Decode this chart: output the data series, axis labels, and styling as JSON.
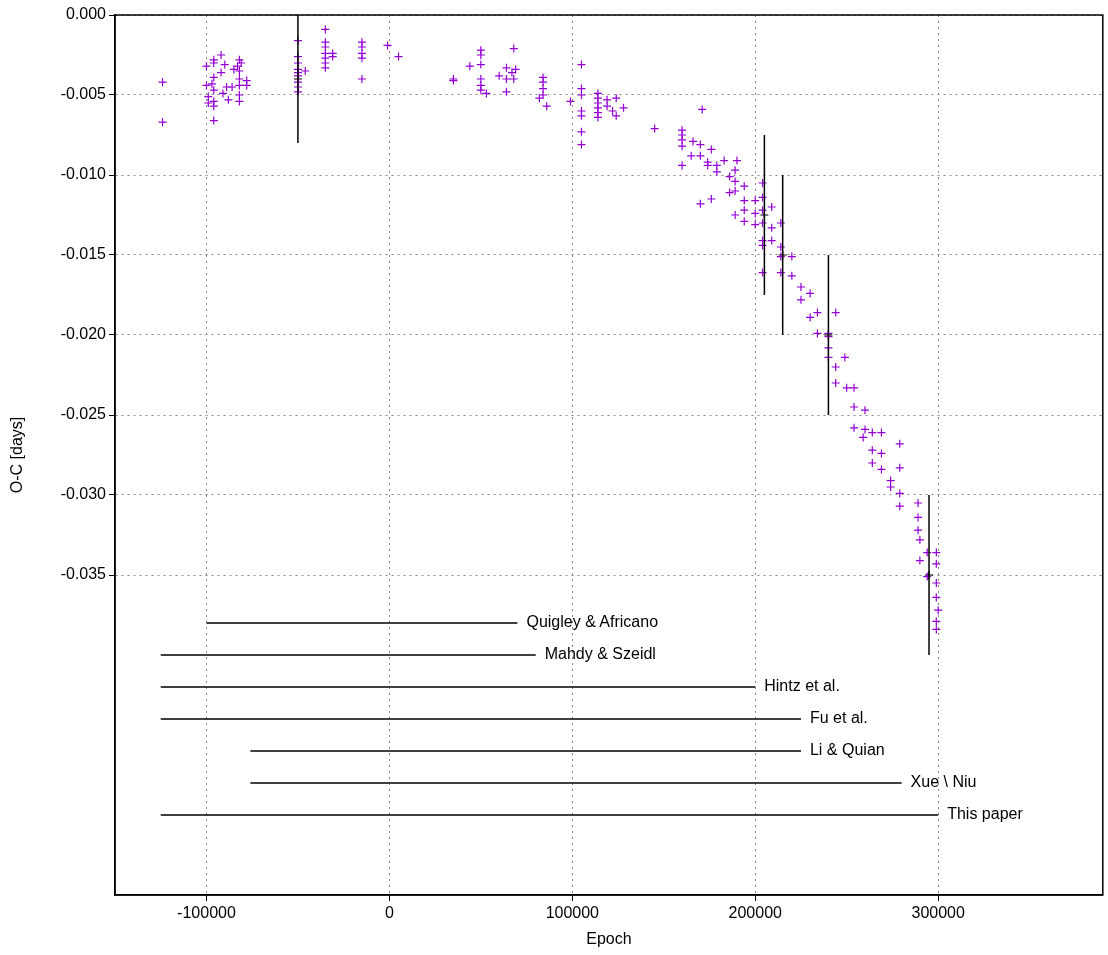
{
  "chart_data": {
    "type": "scatter",
    "xlabel": "Epoch",
    "ylabel": "O-C [days]",
    "xlim": [
      -150000,
      390000
    ],
    "xticks": [
      -100000,
      0,
      100000,
      200000,
      300000
    ],
    "ylim": [
      -0.055,
      0
    ],
    "yticks": [
      {
        "value": 0,
        "label": "0.000"
      },
      {
        "value": -0.005,
        "label": "-0.005"
      },
      {
        "value": -0.01,
        "label": "-0.010"
      },
      {
        "value": -0.015,
        "label": "-0.015"
      },
      {
        "value": -0.02,
        "label": "-0.020"
      },
      {
        "value": -0.025,
        "label": "-0.025"
      },
      {
        "value": -0.03,
        "label": "-0.030"
      },
      {
        "value": -0.035,
        "label": "-0.035"
      }
    ],
    "grid": true,
    "legend": false,
    "marker": "cross",
    "series": [
      {
        "color": "#9400d3",
        "x": [
          -124000,
          -124000,
          -100000,
          -100000,
          -99000,
          -99000,
          -97000,
          -96000,
          -96000,
          -96000,
          -96000,
          -96000,
          -96000,
          -96000,
          -92000,
          -92000,
          -91000,
          -90000,
          -89000,
          -88000,
          -86000,
          -85000,
          -83000,
          -82000,
          -82000,
          -82000,
          -82000,
          -82000,
          -82000,
          -81000,
          -78000,
          -78000,
          -50000,
          -50000,
          -50000,
          -50000,
          -50000,
          -50000,
          -50000,
          -50000,
          -50000,
          -46000,
          -35000,
          -35000,
          -35000,
          -35000,
          -35000,
          -35000,
          -35000,
          -31000,
          -31000,
          -15000,
          -15000,
          -15000,
          -15000,
          -15000,
          -1000,
          5000,
          35000,
          35000,
          50000,
          50000,
          50000,
          50000,
          50000,
          50000,
          44000,
          53000,
          60000,
          64000,
          64000,
          64000,
          67000,
          68000,
          68000,
          69000,
          84000,
          84000,
          84000,
          84000,
          82000,
          86000,
          99000,
          105000,
          105000,
          105000,
          105000,
          105000,
          105000,
          105000,
          114000,
          114000,
          114000,
          114000,
          114000,
          114000,
          119000,
          119000,
          122000,
          124000,
          124000,
          128000,
          145000,
          160000,
          160000,
          160000,
          160000,
          165000,
          171000,
          160000,
          166000,
          170000,
          170000,
          176000,
          174000,
          174000,
          179000,
          179000,
          183000,
          190000,
          170000,
          176000,
          186000,
          186000,
          189000,
          189000,
          189000,
          194000,
          189000,
          194000,
          194000,
          194000,
          200000,
          200000,
          200000,
          204000,
          204000,
          204000,
          204000,
          204000,
          204000,
          204000,
          209000,
          209000,
          209000,
          214000,
          214000,
          214000,
          214000,
          220000,
          220000,
          225000,
          225000,
          230000,
          230000,
          234000,
          234000,
          244000,
          240000,
          240000,
          240000,
          240000,
          244000,
          244000,
          249000,
          250000,
          254000,
          254000,
          260000,
          260000,
          254000,
          259000,
          264000,
          264000,
          264000,
          269000,
          269000,
          269000,
          274000,
          274000,
          279000,
          279000,
          279000,
          279000,
          289000,
          289000,
          289000,
          290000,
          290000,
          294000,
          294000,
          299000,
          299000,
          299000,
          299000,
          300000,
          299000,
          299000
        ],
        "values": [
          -0.0042,
          -0.0067,
          -0.0032,
          -0.0044,
          -0.0051,
          -0.0055,
          -0.0043,
          -0.0028,
          -0.003,
          -0.0039,
          -0.0047,
          -0.0054,
          -0.0057,
          -0.0066,
          -0.0025,
          -0.0036,
          -0.0049,
          -0.0031,
          -0.0045,
          -0.0053,
          -0.0045,
          -0.0034,
          -0.0032,
          -0.0028,
          -0.0035,
          -0.004,
          -0.0044,
          -0.005,
          -0.0054,
          -0.003,
          -0.0041,
          -0.0044,
          -0.0016,
          -0.0026,
          -0.003,
          -0.0034,
          -0.0036,
          -0.0038,
          -0.0042,
          -0.0045,
          -0.0048,
          -0.0035,
          -0.0009,
          -0.0017,
          -0.002,
          -0.0024,
          -0.0027,
          -0.003,
          -0.0033,
          -0.0024,
          -0.0026,
          -0.0017,
          -0.002,
          -0.0024,
          -0.0027,
          -0.004,
          -0.0019,
          -0.0026,
          -0.004,
          -0.0041,
          -0.0022,
          -0.0025,
          -0.0031,
          -0.004,
          -0.0044,
          -0.0047,
          -0.0032,
          -0.0049,
          -0.0038,
          -0.0033,
          -0.004,
          -0.0048,
          -0.0036,
          -0.0021,
          -0.004,
          -0.0034,
          -0.0039,
          -0.0042,
          -0.0046,
          -0.005,
          -0.0052,
          -0.0057,
          -0.0054,
          -0.0031,
          -0.0046,
          -0.005,
          -0.006,
          -0.0063,
          -0.0073,
          -0.0081,
          -0.0049,
          -0.0052,
          -0.0055,
          -0.0058,
          -0.0061,
          -0.0064,
          -0.0053,
          -0.0057,
          -0.006,
          -0.0052,
          -0.0063,
          -0.0058,
          -0.0071,
          -0.0072,
          -0.0075,
          -0.0078,
          -0.0082,
          -0.0088,
          -0.0059,
          -0.0094,
          -0.0079,
          -0.0081,
          -0.0088,
          -0.0084,
          -0.0092,
          -0.0094,
          -0.0094,
          -0.0098,
          -0.0091,
          -0.0091,
          -0.0118,
          -0.0115,
          -0.0101,
          -0.0111,
          -0.0097,
          -0.0104,
          -0.011,
          -0.0107,
          -0.0125,
          -0.0116,
          -0.0122,
          -0.0129,
          -0.0116,
          -0.0124,
          -0.0131,
          -0.0105,
          -0.0114,
          -0.0122,
          -0.013,
          -0.0141,
          -0.0144,
          -0.0161,
          -0.012,
          -0.0133,
          -0.0141,
          -0.013,
          -0.0145,
          -0.0151,
          -0.0161,
          -0.0151,
          -0.0163,
          -0.017,
          -0.0178,
          -0.0174,
          -0.0189,
          -0.0186,
          -0.0199,
          -0.0186,
          -0.0199,
          -0.0208,
          -0.0201,
          -0.0214,
          -0.022,
          -0.023,
          -0.0214,
          -0.0233,
          -0.0233,
          -0.0245,
          -0.0247,
          -0.0259,
          -0.0258,
          -0.0264,
          -0.0261,
          -0.0272,
          -0.028,
          -0.0261,
          -0.0274,
          -0.0284,
          -0.0291,
          -0.0295,
          -0.0268,
          -0.0283,
          -0.0299,
          -0.0307,
          -0.0305,
          -0.0314,
          -0.0322,
          -0.0328,
          -0.0341,
          -0.0336,
          -0.0351,
          -0.0336,
          -0.0343,
          -0.0355,
          -0.0364,
          -0.0372,
          -0.0379,
          -0.0384
        ]
      },
      {
        "color": "#000000",
        "x": [
          -50000,
          205000,
          215000,
          240000,
          295000
        ],
        "values": [
          -0.004,
          -0.0125,
          -0.015,
          -0.02,
          -0.035
        ],
        "errors": [
          0.004,
          0.005,
          0.005,
          0.005,
          0.005
        ]
      },
      {
        "type": "line",
        "name": "Quigley & Africano",
        "color": "#000000",
        "marker": "none",
        "x": [
          -100000,
          70000
        ],
        "values": [
          -0.038,
          -0.038
        ]
      },
      {
        "type": "line",
        "name": "Mahdy & Szeidl",
        "color": "#000000",
        "marker": "none",
        "x": [
          -125000,
          80000
        ],
        "values": [
          -0.04,
          -0.04
        ]
      },
      {
        "type": "line",
        "name": "Hintz et al.",
        "color": "#000000",
        "marker": "none",
        "x": [
          -125000,
          200000
        ],
        "values": [
          -0.042,
          -0.042
        ]
      },
      {
        "type": "line",
        "name": "Fu et al.",
        "color": "#000000",
        "marker": "none",
        "x": [
          -125000,
          225000
        ],
        "values": [
          -0.044,
          -0.044
        ]
      },
      {
        "type": "line",
        "name": "Li & Quian",
        "color": "#000000",
        "marker": "none",
        "x": [
          -76000,
          225000
        ],
        "values": [
          -0.046,
          -0.046
        ]
      },
      {
        "type": "line",
        "name": "Xue \\ Niu",
        "color": "#000000",
        "marker": "none",
        "x": [
          -76000,
          280000
        ],
        "values": [
          -0.048,
          -0.048
        ]
      },
      {
        "type": "line",
        "name": "This paper",
        "color": "#000000",
        "marker": "none",
        "x": [
          -125000,
          300000
        ],
        "values": [
          -0.05,
          -0.05
        ]
      }
    ]
  }
}
